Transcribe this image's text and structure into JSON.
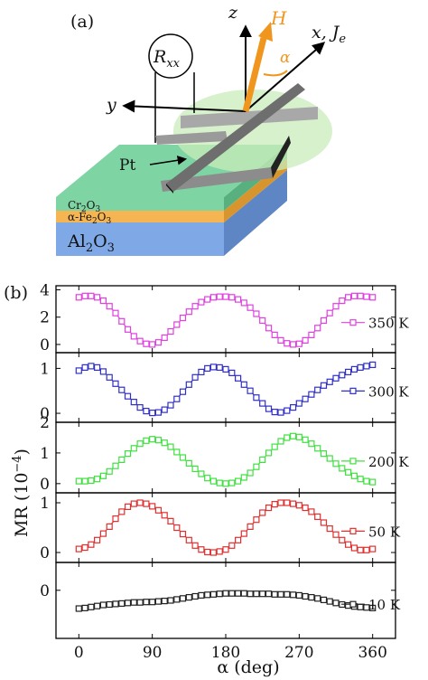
{
  "panel_a": {
    "label": "(a)",
    "axis_z": "z",
    "axis_x": "x, J",
    "axis_x_sub": "e",
    "axis_y": "y",
    "field_label": "H",
    "angle_label": "α",
    "meter_label": "R",
    "meter_sub": "xx",
    "electrode_label": "Pt",
    "layer_top": {
      "pre": "Cr",
      "sub1": "2",
      "mid": "O",
      "sub2": "3"
    },
    "layer_mid": {
      "pre": "α-Fe",
      "sub1": "2",
      "mid": "O",
      "sub2": "3"
    },
    "layer_bot": {
      "pre": "Al",
      "sub1": "2",
      "mid": "O",
      "sub2": "3"
    },
    "colors": {
      "cr2o3": "#7fd4a4",
      "fe2o3": "#f5b553",
      "al2o3": "#7ea9e6",
      "electrode": "#9a9a9a",
      "field": "#f0961e"
    }
  },
  "panel_b": {
    "label": "(b)"
  },
  "chart_data": {
    "type": "line",
    "xlabel": "α (deg)",
    "ylabel": "MR (10",
    "ylabel_exp": "−4",
    "ylabel_close": ")",
    "x_ticks": [
      "0",
      "90",
      "180",
      "270",
      "360"
    ],
    "xlim": [
      -28,
      388
    ],
    "series": [
      {
        "name": "350 K",
        "color": "#e040e0",
        "ylim": [
          -0.6,
          4.3
        ],
        "y_ticks": [
          "0",
          "2",
          "4"
        ],
        "y_tick_values": [
          0,
          2,
          4
        ],
        "x": [
          0,
          7.5,
          15,
          22.5,
          30,
          37.5,
          45,
          52.5,
          60,
          67.5,
          75,
          82.5,
          90,
          97.5,
          105,
          112.5,
          120,
          127.5,
          135,
          142.5,
          150,
          157.5,
          165,
          172.5,
          180,
          187.5,
          195,
          202.5,
          210,
          217.5,
          225,
          232.5,
          240,
          247.5,
          255,
          262.5,
          270,
          277.5,
          285,
          292.5,
          300,
          307.5,
          315,
          322.5,
          330,
          337.5,
          345,
          352.5,
          360
        ],
        "y": [
          3.45,
          3.55,
          3.55,
          3.45,
          3.2,
          2.8,
          2.3,
          1.7,
          1.1,
          0.6,
          0.25,
          0.05,
          0.0,
          0.15,
          0.5,
          0.95,
          1.45,
          1.95,
          2.4,
          2.8,
          3.1,
          3.3,
          3.45,
          3.5,
          3.5,
          3.45,
          3.3,
          3.05,
          2.7,
          2.25,
          1.75,
          1.2,
          0.7,
          0.3,
          0.08,
          0.0,
          0.05,
          0.3,
          0.7,
          1.2,
          1.75,
          2.3,
          2.8,
          3.2,
          3.45,
          3.55,
          3.55,
          3.5,
          3.45
        ]
      },
      {
        "name": "300 K",
        "color": "#3030c8",
        "ylim": [
          -0.2,
          1.35
        ],
        "y_ticks": [
          "0",
          "1"
        ],
        "y_tick_values": [
          0,
          1
        ],
        "x": [
          0,
          7.5,
          15,
          22.5,
          30,
          37.5,
          45,
          52.5,
          60,
          67.5,
          75,
          82.5,
          90,
          97.5,
          105,
          112.5,
          120,
          127.5,
          135,
          142.5,
          150,
          157.5,
          165,
          172.5,
          180,
          187.5,
          195,
          202.5,
          210,
          217.5,
          225,
          232.5,
          240,
          247.5,
          255,
          262.5,
          270,
          277.5,
          285,
          292.5,
          300,
          307.5,
          315,
          322.5,
          330,
          337.5,
          345,
          352.5,
          360
        ],
        "y": [
          0.95,
          1.02,
          1.05,
          1.02,
          0.93,
          0.8,
          0.66,
          0.52,
          0.38,
          0.25,
          0.13,
          0.05,
          0.01,
          0.02,
          0.08,
          0.18,
          0.32,
          0.48,
          0.64,
          0.8,
          0.92,
          1.0,
          1.03,
          1.02,
          0.98,
          0.9,
          0.78,
          0.64,
          0.5,
          0.35,
          0.22,
          0.1,
          0.03,
          0.02,
          0.06,
          0.13,
          0.22,
          0.32,
          0.42,
          0.52,
          0.62,
          0.7,
          0.78,
          0.85,
          0.92,
          0.98,
          1.02,
          1.05,
          1.08
        ]
      },
      {
        "name": "200 K",
        "color": "#40e040",
        "ylim": [
          -0.3,
          2.0
        ],
        "y_ticks": [
          "0",
          "1",
          "2"
        ],
        "y_tick_values": [
          0,
          1,
          2
        ],
        "x": [
          0,
          7.5,
          15,
          22.5,
          30,
          37.5,
          45,
          52.5,
          60,
          67.5,
          75,
          82.5,
          90,
          97.5,
          105,
          112.5,
          120,
          127.5,
          135,
          142.5,
          150,
          157.5,
          165,
          172.5,
          180,
          187.5,
          195,
          202.5,
          210,
          217.5,
          225,
          232.5,
          240,
          247.5,
          255,
          262.5,
          270,
          277.5,
          285,
          292.5,
          300,
          307.5,
          315,
          322.5,
          330,
          337.5,
          345,
          352.5,
          360
        ],
        "y": [
          0.08,
          0.08,
          0.1,
          0.15,
          0.25,
          0.4,
          0.58,
          0.78,
          0.98,
          1.15,
          1.3,
          1.4,
          1.45,
          1.42,
          1.33,
          1.2,
          1.03,
          0.85,
          0.66,
          0.48,
          0.32,
          0.18,
          0.08,
          0.02,
          0.0,
          0.02,
          0.08,
          0.2,
          0.35,
          0.55,
          0.78,
          1.0,
          1.2,
          1.38,
          1.5,
          1.55,
          1.52,
          1.43,
          1.3,
          1.15,
          0.98,
          0.82,
          0.65,
          0.5,
          0.37,
          0.25,
          0.15,
          0.08,
          0.05
        ]
      },
      {
        "name": "50 K",
        "color": "#e03030",
        "ylim": [
          -0.2,
          1.2
        ],
        "y_ticks": [
          "0",
          "1"
        ],
        "y_tick_values": [
          0,
          1
        ],
        "x": [
          0,
          7.5,
          15,
          22.5,
          30,
          37.5,
          45,
          52.5,
          60,
          67.5,
          75,
          82.5,
          90,
          97.5,
          105,
          112.5,
          120,
          127.5,
          135,
          142.5,
          150,
          157.5,
          165,
          172.5,
          180,
          187.5,
          195,
          202.5,
          210,
          217.5,
          225,
          232.5,
          240,
          247.5,
          255,
          262.5,
          270,
          277.5,
          285,
          292.5,
          300,
          307.5,
          315,
          322.5,
          330,
          337.5,
          345,
          352.5,
          360
        ],
        "y": [
          0.07,
          0.1,
          0.16,
          0.25,
          0.38,
          0.52,
          0.68,
          0.82,
          0.92,
          0.98,
          1.0,
          0.98,
          0.93,
          0.85,
          0.75,
          0.63,
          0.5,
          0.37,
          0.25,
          0.14,
          0.06,
          0.01,
          0.0,
          0.02,
          0.06,
          0.14,
          0.25,
          0.38,
          0.52,
          0.66,
          0.8,
          0.9,
          0.97,
          1.0,
          1.0,
          0.98,
          0.95,
          0.9,
          0.82,
          0.72,
          0.6,
          0.48,
          0.36,
          0.25,
          0.16,
          0.09,
          0.05,
          0.05,
          0.07
        ]
      },
      {
        "name": "10 K",
        "color": "#222222",
        "ylim": [
          -0.95,
          0.55
        ],
        "y_ticks": [
          "0"
        ],
        "y_tick_values": [
          0
        ],
        "x": [
          0,
          7.5,
          15,
          22.5,
          30,
          37.5,
          45,
          52.5,
          60,
          67.5,
          75,
          82.5,
          90,
          97.5,
          105,
          112.5,
          120,
          127.5,
          135,
          142.5,
          150,
          157.5,
          165,
          172.5,
          180,
          187.5,
          195,
          202.5,
          210,
          217.5,
          225,
          232.5,
          240,
          247.5,
          255,
          262.5,
          270,
          277.5,
          285,
          292.5,
          300,
          307.5,
          315,
          322.5,
          330,
          337.5,
          345,
          352.5,
          360
        ],
        "y": [
          -0.36,
          -0.35,
          -0.33,
          -0.31,
          -0.29,
          -0.28,
          -0.27,
          -0.26,
          -0.25,
          -0.24,
          -0.24,
          -0.23,
          -0.23,
          -0.22,
          -0.21,
          -0.2,
          -0.18,
          -0.16,
          -0.14,
          -0.12,
          -0.1,
          -0.09,
          -0.08,
          -0.07,
          -0.06,
          -0.06,
          -0.06,
          -0.06,
          -0.07,
          -0.07,
          -0.07,
          -0.07,
          -0.08,
          -0.08,
          -0.08,
          -0.09,
          -0.1,
          -0.12,
          -0.14,
          -0.16,
          -0.19,
          -0.22,
          -0.25,
          -0.28,
          -0.3,
          -0.32,
          -0.33,
          -0.34,
          -0.35
        ]
      }
    ]
  }
}
